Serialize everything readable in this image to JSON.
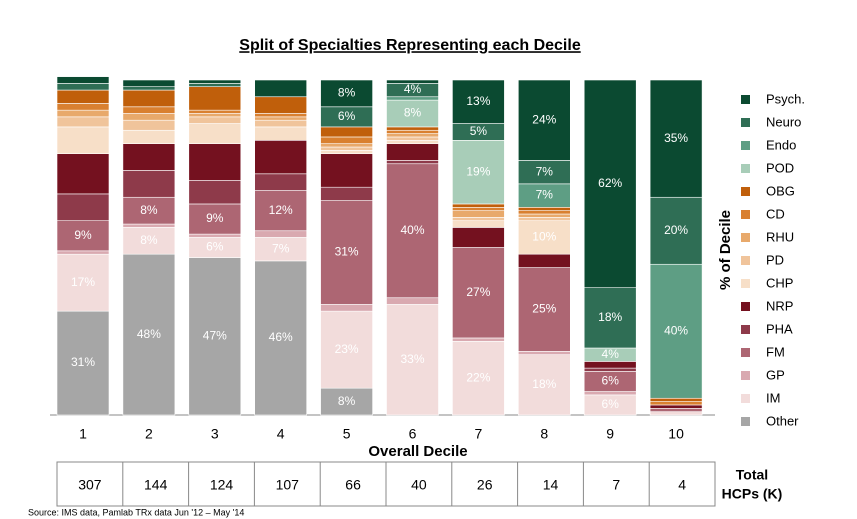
{
  "chart_data": {
    "type": "stacked_bar",
    "title": "Split of Specialties Representing each Decile",
    "x_label": "Overall Decile",
    "y_label": "% of Decile",
    "categories": [
      "1",
      "2",
      "3",
      "4",
      "5",
      "6",
      "7",
      "8",
      "9",
      "10"
    ],
    "ylim": [
      0,
      100
    ],
    "legend": "right",
    "series": [
      {
        "name": "Other",
        "color": "#a6a6a6",
        "values": [
          31,
          48,
          47,
          46,
          8,
          0,
          0,
          0,
          0,
          0
        ],
        "value_labels": [
          "31%",
          "48%",
          "47%",
          "46%",
          "8%",
          null,
          null,
          null,
          null,
          null
        ]
      },
      {
        "name": "IM",
        "color": "#f2dcdb",
        "values": [
          17,
          8,
          6,
          7,
          23,
          33,
          22,
          18,
          6,
          1
        ],
        "value_labels": [
          "17%",
          "8%",
          "6%",
          "7%",
          "23%",
          "33%",
          "22%",
          "18%",
          "6%",
          null
        ]
      },
      {
        "name": "GP",
        "color": "#d9a9b0",
        "values": [
          1,
          1,
          1,
          2,
          2,
          2,
          1,
          1,
          1,
          0
        ],
        "value_labels": [
          null,
          null,
          null,
          null,
          null,
          null,
          null,
          null,
          null,
          null
        ]
      },
      {
        "name": "FM",
        "color": "#ad6673",
        "values": [
          9,
          8,
          9,
          12,
          31,
          40,
          27,
          25,
          6,
          1
        ],
        "value_labels": [
          "9%",
          "8%",
          "9%",
          "12%",
          "31%",
          "40%",
          "27%",
          "25%",
          "6%",
          null
        ]
      },
      {
        "name": "PHA",
        "color": "#8e3a4a",
        "values": [
          8,
          8,
          7,
          5,
          4,
          1,
          0,
          0,
          1,
          0
        ],
        "value_labels": [
          null,
          null,
          null,
          null,
          null,
          null,
          null,
          null,
          null,
          null
        ]
      },
      {
        "name": "NRP",
        "color": "#74111f",
        "values": [
          12,
          8,
          11,
          10,
          10,
          5,
          6,
          4,
          2,
          1
        ],
        "value_labels": [
          null,
          null,
          null,
          null,
          null,
          null,
          null,
          null,
          null,
          null
        ]
      },
      {
        "name": "CHP",
        "color": "#f7dfc8",
        "values": [
          8,
          4,
          6,
          4,
          1,
          1,
          2,
          10,
          0,
          0
        ],
        "value_labels": [
          null,
          null,
          null,
          null,
          null,
          null,
          null,
          "10%",
          null,
          null
        ]
      },
      {
        "name": "PD",
        "color": "#f0c49b",
        "values": [
          3,
          3,
          2,
          2,
          1,
          1,
          1,
          1,
          0,
          0
        ],
        "value_labels": [
          null,
          null,
          null,
          null,
          null,
          null,
          null,
          null,
          null,
          null
        ]
      },
      {
        "name": "RHU",
        "color": "#e8a96b",
        "values": [
          2,
          2,
          1,
          1,
          1,
          1,
          2,
          1,
          0,
          0
        ],
        "value_labels": [
          null,
          null,
          null,
          null,
          null,
          null,
          null,
          null,
          null,
          null
        ]
      },
      {
        "name": "CD",
        "color": "#d98030",
        "values": [
          2,
          2,
          1,
          1,
          2,
          1,
          1,
          1,
          0,
          1
        ],
        "value_labels": [
          null,
          null,
          null,
          null,
          null,
          null,
          null,
          null,
          null,
          null
        ]
      },
      {
        "name": "OBG",
        "color": "#c05f0b",
        "values": [
          4,
          5,
          7,
          5,
          3,
          1,
          1,
          1,
          0,
          1
        ],
        "value_labels": [
          null,
          null,
          null,
          null,
          null,
          null,
          null,
          null,
          null,
          null
        ]
      },
      {
        "name": "POD",
        "color": "#a8cdb8",
        "values": [
          0,
          0,
          0,
          0,
          0,
          8,
          19,
          0,
          4,
          0
        ],
        "value_labels": [
          null,
          null,
          null,
          null,
          null,
          "8%",
          "19%",
          null,
          "4%",
          null
        ]
      },
      {
        "name": "Endo",
        "color": "#5e9e84",
        "values": [
          0,
          0,
          0,
          0,
          0,
          1,
          0,
          7,
          0,
          40
        ],
        "value_labels": [
          null,
          null,
          null,
          null,
          null,
          null,
          null,
          "7%",
          null,
          "40%"
        ]
      },
      {
        "name": "Neuro",
        "color": "#2f6e55",
        "values": [
          2,
          1,
          1,
          0,
          6,
          4,
          5,
          7,
          18,
          20
        ],
        "value_labels": [
          null,
          null,
          null,
          null,
          "6%",
          "4%",
          "5%",
          "7%",
          "18%",
          "20%"
        ]
      },
      {
        "name": "Psych.",
        "color": "#0b4a31",
        "values": [
          2,
          2,
          1,
          5,
          8,
          1,
          13,
          24,
          62,
          35
        ],
        "value_labels": [
          null,
          null,
          null,
          null,
          "8%",
          null,
          "13%",
          "24%",
          "62%",
          "35%"
        ]
      }
    ]
  },
  "hcp_table": {
    "label": [
      "Total",
      "HCPs (K)"
    ],
    "values": [
      307,
      144,
      124,
      107,
      66,
      40,
      26,
      14,
      7,
      4
    ]
  },
  "source": "Source: IMS data, Pamlab TRx data Jun '12 – May '14"
}
